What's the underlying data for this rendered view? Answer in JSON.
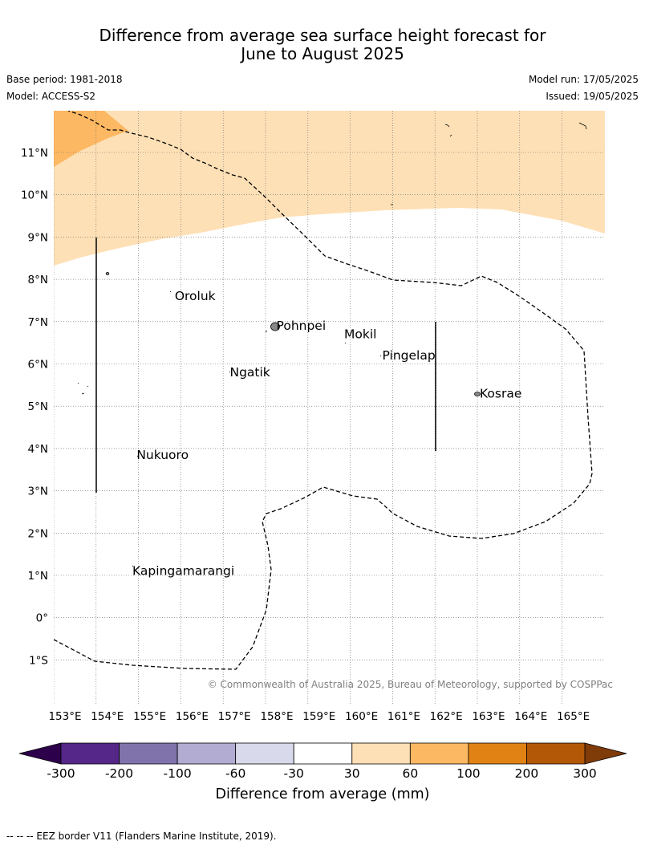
{
  "title": {
    "line1": "Difference from average sea surface height forecast for",
    "line2": "June to August 2025"
  },
  "meta": {
    "base_period": "Base period: 1981-2018",
    "model": "Model: ACCESS-S2",
    "model_run": "Model run: 17/05/2025",
    "issued": "Issued: 19/05/2025"
  },
  "map": {
    "lat_labels": [
      "11°N",
      "10°N",
      "9°N",
      "8°N",
      "7°N",
      "6°N",
      "5°N",
      "4°N",
      "3°N",
      "2°N",
      "1°N",
      "0°",
      "1°S"
    ],
    "lon_labels": [
      "153°E",
      "154°E",
      "155°E",
      "156°E",
      "157°E",
      "158°E",
      "159°E",
      "160°E",
      "161°E",
      "162°E",
      "163°E",
      "164°E",
      "165°E"
    ],
    "places": [
      {
        "name": "Oroluk",
        "lon": 155.8,
        "lat": 7.6
      },
      {
        "name": "Pohnpei",
        "lon": 158.2,
        "lat": 6.9
      },
      {
        "name": "Mokil",
        "lon": 159.8,
        "lat": 6.7
      },
      {
        "name": "Pingelap",
        "lon": 160.7,
        "lat": 6.2
      },
      {
        "name": "Ngatik",
        "lon": 157.1,
        "lat": 5.8
      },
      {
        "name": "Kosrae",
        "lon": 163.0,
        "lat": 5.3
      },
      {
        "name": "Nukuoro",
        "lon": 154.9,
        "lat": 3.85
      },
      {
        "name": "Kapingamarangi",
        "lon": 154.8,
        "lat": 1.1
      }
    ],
    "copyright": "© Commonwealth of Australia 2025, Bureau of Meteorology, supported by COSPPac"
  },
  "colorbar": {
    "labels": [
      "-300",
      "-200",
      "-100",
      "-60",
      "-30",
      "30",
      "60",
      "100",
      "200",
      "300"
    ],
    "colors": [
      "#542788",
      "#8073ac",
      "#b2abd2",
      "#d8daeb",
      "#ffffff",
      "#fee0b6",
      "#fdb863",
      "#e08214",
      "#b35806"
    ],
    "under_color": "#2d004b",
    "over_color": "#7f3b08",
    "label": "Difference from average (mm)"
  },
  "footnote": "-- -- -- EEZ border V11 (Flanders Marine Institute, 2019)."
}
